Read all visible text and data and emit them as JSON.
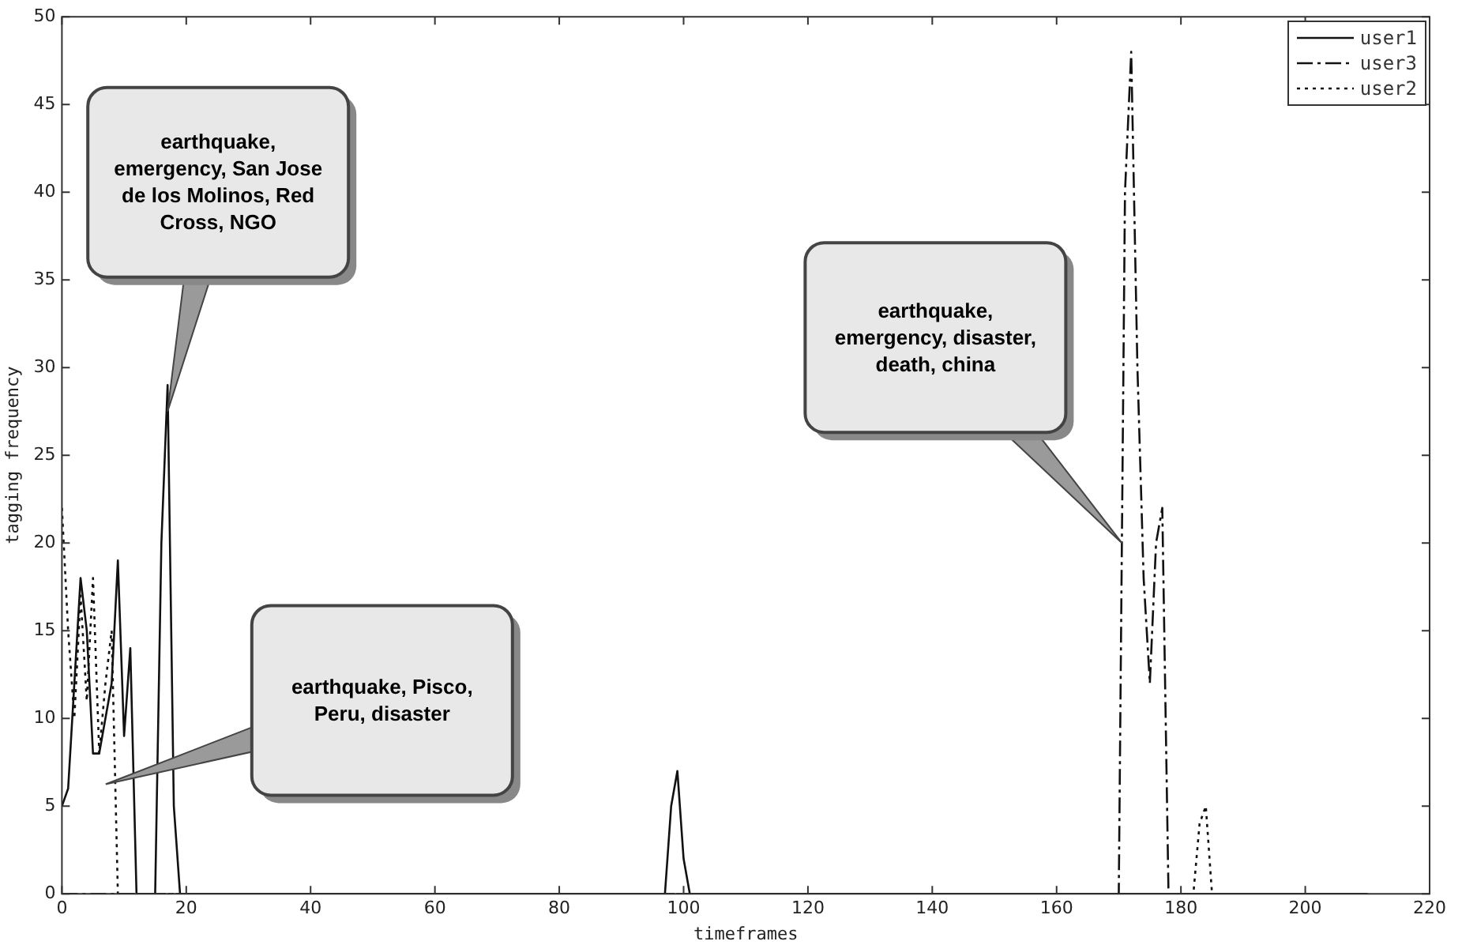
{
  "chart_data": {
    "type": "line",
    "xlabel": "timeframes",
    "ylabel": "tagging frequency",
    "xlim": [
      0,
      220
    ],
    "xticks": [
      0,
      20,
      40,
      60,
      80,
      100,
      120,
      140,
      160,
      180,
      200,
      220
    ],
    "ylim": [
      0,
      50
    ],
    "yticks": [
      0,
      5,
      10,
      15,
      20,
      25,
      30,
      35,
      40,
      45,
      50
    ],
    "grid": false,
    "legend": "top right",
    "marker": "none",
    "series": [
      {
        "name": "user1",
        "color": "#111111",
        "line_style": "solid",
        "x": [
          0,
          1,
          3,
          4,
          5,
          6,
          8,
          9,
          10,
          11,
          12,
          15,
          16,
          17,
          18,
          19,
          97,
          98,
          99,
          100,
          101,
          210
        ],
        "values": [
          5,
          6,
          18,
          15,
          8,
          8,
          12,
          19,
          9,
          14,
          0,
          0,
          20,
          29,
          5,
          0,
          0,
          5,
          7,
          2,
          0,
          0
        ]
      },
      {
        "name": "user3",
        "color": "#111111",
        "line_style": "dashdot",
        "x": [
          0,
          170,
          171,
          172,
          173,
          174,
          175,
          176,
          177,
          178,
          210
        ],
        "values": [
          0,
          0,
          40,
          48,
          30,
          18,
          12,
          20,
          22,
          0,
          0
        ]
      },
      {
        "name": "user2",
        "color": "#111111",
        "line_style": "dotted",
        "x": [
          0,
          1,
          2,
          3,
          4,
          5,
          6,
          7,
          8,
          9,
          182,
          183,
          184,
          185,
          210
        ],
        "values": [
          22,
          15,
          10,
          17,
          11,
          18,
          8,
          12,
          15,
          0,
          0,
          4,
          5,
          0,
          0
        ]
      }
    ],
    "annotations": [
      {
        "text": "earthquake, emergency, San Jose de los Molinos, Red Cross, NGO",
        "x": 17,
        "y": 27.5
      },
      "earthquake, Pisco, Peru, disaster",
      "earthquake, emergency, disaster, death, china"
    ]
  }
}
